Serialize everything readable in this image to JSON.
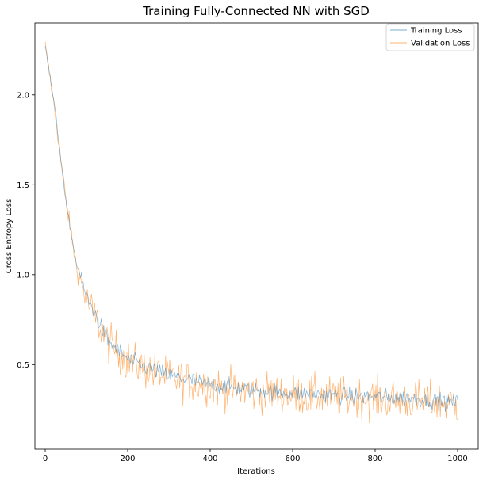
{
  "chart_data": {
    "type": "line",
    "title": "Training Fully-Connected NN with SGD",
    "xlabel": "Iterations",
    "ylabel": "Cross Entropy Loss",
    "xlim": [
      -25,
      1050
    ],
    "ylim": [
      0.03,
      2.4
    ],
    "xticks": [
      0,
      200,
      400,
      600,
      800,
      1000
    ],
    "yticks": [
      0.5,
      1.0,
      1.5,
      2.0
    ],
    "xtick_labels": [
      "0",
      "200",
      "400",
      "600",
      "800",
      "1000"
    ],
    "ytick_labels": [
      "0.5",
      "1.0",
      "1.5",
      "2.0"
    ],
    "grid": false,
    "legend_position": "top-right",
    "colors": {
      "training": "#1f77b4",
      "validation": "#ff7f0e"
    },
    "series_description": "Approximate envelope of the plotted curves (values per iteration checkpoint)",
    "series": [
      {
        "name": "Training Loss",
        "x": [
          0,
          25,
          50,
          75,
          100,
          150,
          200,
          250,
          300,
          400,
          500,
          600,
          700,
          800,
          900,
          1000
        ],
        "values": [
          2.28,
          1.9,
          1.4,
          1.07,
          0.88,
          0.64,
          0.53,
          0.48,
          0.44,
          0.39,
          0.36,
          0.34,
          0.33,
          0.32,
          0.31,
          0.29
        ]
      },
      {
        "name": "Validation Loss",
        "x": [
          0,
          25,
          50,
          75,
          100,
          150,
          200,
          250,
          300,
          400,
          500,
          600,
          700,
          800,
          900,
          1000
        ],
        "values": [
          2.28,
          1.88,
          1.42,
          1.05,
          0.86,
          0.63,
          0.52,
          0.47,
          0.43,
          0.38,
          0.35,
          0.33,
          0.32,
          0.31,
          0.3,
          0.28
        ]
      }
    ]
  }
}
